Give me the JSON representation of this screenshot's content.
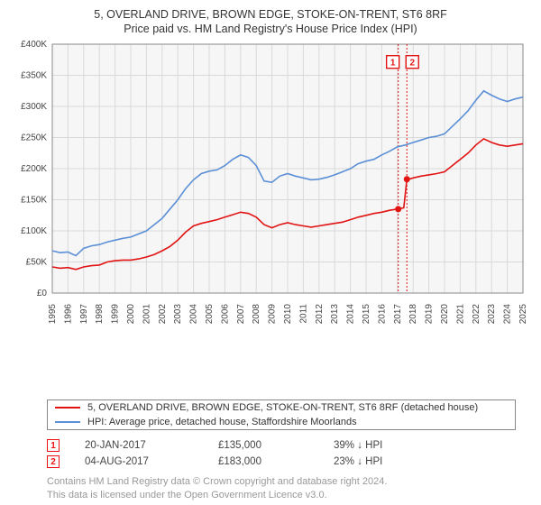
{
  "title_line1": "5, OVERLAND DRIVE, BROWN EDGE, STOKE-ON-TRENT, ST6 8RF",
  "title_line2": "Price paid vs. HM Land Registry's House Price Index (HPI)",
  "chart": {
    "type": "line",
    "background_color": "#f6f6f6",
    "grid_color": "#d9d9d9",
    "axis_color": "#888888",
    "xlim": [
      1995,
      2025
    ],
    "ylim": [
      0,
      400000
    ],
    "ytick_step": 50000,
    "y_ticks": [
      "£0",
      "£50K",
      "£100K",
      "£150K",
      "£200K",
      "£250K",
      "£300K",
      "£350K",
      "£400K"
    ],
    "x_ticks": [
      1995,
      1996,
      1997,
      1998,
      1999,
      2000,
      2001,
      2002,
      2003,
      2004,
      2005,
      2006,
      2007,
      2008,
      2009,
      2010,
      2011,
      2012,
      2013,
      2014,
      2015,
      2016,
      2017,
      2018,
      2019,
      2020,
      2021,
      2022,
      2023,
      2024,
      2025
    ],
    "series": [
      {
        "key": "property",
        "color": "#e11313",
        "line_width": 1.6,
        "data": [
          [
            1995,
            42000
          ],
          [
            1995.5,
            40000
          ],
          [
            1996,
            41000
          ],
          [
            1996.5,
            38000
          ],
          [
            1997,
            42000
          ],
          [
            1997.5,
            44000
          ],
          [
            1998,
            45000
          ],
          [
            1998.5,
            50000
          ],
          [
            1999,
            52000
          ],
          [
            1999.5,
            53000
          ],
          [
            2000,
            53000
          ],
          [
            2000.5,
            55000
          ],
          [
            2001,
            58000
          ],
          [
            2001.5,
            62000
          ],
          [
            2002,
            68000
          ],
          [
            2002.5,
            75000
          ],
          [
            2003,
            85000
          ],
          [
            2003.5,
            98000
          ],
          [
            2004,
            108000
          ],
          [
            2004.5,
            112000
          ],
          [
            2005,
            115000
          ],
          [
            2005.5,
            118000
          ],
          [
            2006,
            122000
          ],
          [
            2006.5,
            126000
          ],
          [
            2007,
            130000
          ],
          [
            2007.5,
            128000
          ],
          [
            2008,
            122000
          ],
          [
            2008.5,
            110000
          ],
          [
            2009,
            105000
          ],
          [
            2009.5,
            110000
          ],
          [
            2010,
            113000
          ],
          [
            2010.5,
            110000
          ],
          [
            2011,
            108000
          ],
          [
            2011.5,
            106000
          ],
          [
            2012,
            108000
          ],
          [
            2012.5,
            110000
          ],
          [
            2013,
            112000
          ],
          [
            2013.5,
            114000
          ],
          [
            2014,
            118000
          ],
          [
            2014.5,
            122000
          ],
          [
            2015,
            125000
          ],
          [
            2015.5,
            128000
          ],
          [
            2016,
            130000
          ],
          [
            2016.5,
            133000
          ],
          [
            2017,
            135000
          ],
          [
            2017.4,
            137000
          ],
          [
            2017.6,
            182000
          ],
          [
            2018,
            185000
          ],
          [
            2018.5,
            188000
          ],
          [
            2019,
            190000
          ],
          [
            2019.5,
            192000
          ],
          [
            2020,
            195000
          ],
          [
            2020.5,
            205000
          ],
          [
            2021,
            215000
          ],
          [
            2021.5,
            225000
          ],
          [
            2022,
            238000
          ],
          [
            2022.5,
            248000
          ],
          [
            2023,
            242000
          ],
          [
            2023.5,
            238000
          ],
          [
            2024,
            236000
          ],
          [
            2024.5,
            238000
          ],
          [
            2025,
            240000
          ]
        ]
      },
      {
        "key": "hpi",
        "color": "#5b8fd6",
        "line_width": 1.6,
        "data": [
          [
            1995,
            68000
          ],
          [
            1995.5,
            65000
          ],
          [
            1996,
            66000
          ],
          [
            1996.5,
            60000
          ],
          [
            1997,
            72000
          ],
          [
            1997.5,
            76000
          ],
          [
            1998,
            78000
          ],
          [
            1998.5,
            82000
          ],
          [
            1999,
            85000
          ],
          [
            1999.5,
            88000
          ],
          [
            2000,
            90000
          ],
          [
            2000.5,
            95000
          ],
          [
            2001,
            100000
          ],
          [
            2001.5,
            110000
          ],
          [
            2002,
            120000
          ],
          [
            2002.5,
            135000
          ],
          [
            2003,
            150000
          ],
          [
            2003.5,
            168000
          ],
          [
            2004,
            182000
          ],
          [
            2004.5,
            192000
          ],
          [
            2005,
            196000
          ],
          [
            2005.5,
            198000
          ],
          [
            2006,
            205000
          ],
          [
            2006.5,
            215000
          ],
          [
            2007,
            222000
          ],
          [
            2007.5,
            218000
          ],
          [
            2008,
            205000
          ],
          [
            2008.5,
            180000
          ],
          [
            2009,
            178000
          ],
          [
            2009.5,
            188000
          ],
          [
            2010,
            192000
          ],
          [
            2010.5,
            188000
          ],
          [
            2011,
            185000
          ],
          [
            2011.5,
            182000
          ],
          [
            2012,
            183000
          ],
          [
            2012.5,
            186000
          ],
          [
            2013,
            190000
          ],
          [
            2013.5,
            195000
          ],
          [
            2014,
            200000
          ],
          [
            2014.5,
            208000
          ],
          [
            2015,
            212000
          ],
          [
            2015.5,
            215000
          ],
          [
            2016,
            222000
          ],
          [
            2016.5,
            228000
          ],
          [
            2017,
            235000
          ],
          [
            2017.5,
            238000
          ],
          [
            2018,
            242000
          ],
          [
            2018.5,
            246000
          ],
          [
            2019,
            250000
          ],
          [
            2019.5,
            252000
          ],
          [
            2020,
            256000
          ],
          [
            2020.5,
            268000
          ],
          [
            2021,
            280000
          ],
          [
            2021.5,
            293000
          ],
          [
            2022,
            310000
          ],
          [
            2022.5,
            325000
          ],
          [
            2023,
            318000
          ],
          [
            2023.5,
            312000
          ],
          [
            2024,
            308000
          ],
          [
            2024.5,
            312000
          ],
          [
            2025,
            315000
          ]
        ]
      }
    ],
    "markers": [
      {
        "n": "1",
        "x": 2017.05,
        "y": 135000,
        "line_x": 2017.05,
        "label_y": 370000
      },
      {
        "n": "2",
        "x": 2017.6,
        "y": 183000,
        "line_x": 2017.6,
        "label_y": 370000
      }
    ],
    "marker_color": "#e11313"
  },
  "legend": {
    "property": "5, OVERLAND DRIVE, BROWN EDGE, STOKE-ON-TRENT, ST6 8RF (detached house)",
    "hpi": "HPI: Average price, detached house, Staffordshire Moorlands"
  },
  "transactions": [
    {
      "n": "1",
      "date": "20-JAN-2017",
      "price": "£135,000",
      "delta": "39% ↓ HPI"
    },
    {
      "n": "2",
      "date": "04-AUG-2017",
      "price": "£183,000",
      "delta": "23% ↓ HPI"
    }
  ],
  "footer_line1": "Contains HM Land Registry data © Crown copyright and database right 2024.",
  "footer_line2": "This data is licensed under the Open Government Licence v3.0."
}
